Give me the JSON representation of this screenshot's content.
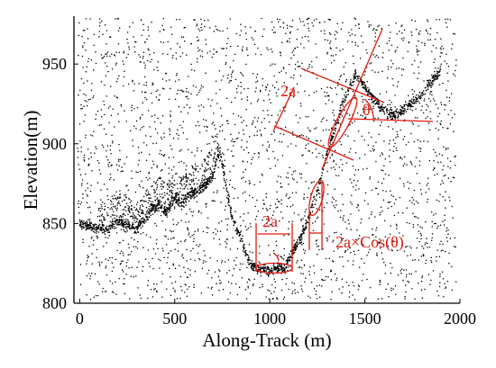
{
  "chart_data": {
    "type": "scatter",
    "xlabel": "Along-Track (m)",
    "ylabel": "Elevation(m)",
    "xlim": [
      -30,
      2000
    ],
    "ylim": [
      800,
      980
    ],
    "xticks": [
      "0",
      "500",
      "1000",
      "1500",
      "2000"
    ],
    "yticks": [
      "800",
      "850",
      "900",
      "950"
    ],
    "xtick_values": [
      0,
      500,
      1000,
      1500,
      2000
    ],
    "ytick_values": [
      800,
      850,
      900,
      950
    ],
    "grid": false,
    "legend": "none",
    "series": [
      {
        "role": "noise",
        "distribution": "uniform random photons over the whole plot area",
        "point_count": 2600
      },
      {
        "role": "surface",
        "x": [
          0,
          60,
          120,
          150,
          200,
          260,
          300,
          340,
          380,
          420,
          450,
          500,
          540,
          580,
          620,
          660,
          700,
          720,
          740,
          760,
          800,
          850,
          900,
          950,
          1000,
          1050,
          1080,
          1100,
          1150,
          1200,
          1250,
          1300,
          1350,
          1400,
          1450,
          1500,
          1550,
          1600,
          1650,
          1700,
          1750,
          1800,
          1850,
          1900
        ],
        "y": [
          850,
          848,
          846,
          845,
          852,
          848,
          846,
          852,
          858,
          862,
          857,
          865,
          862,
          868,
          870,
          874,
          880,
          890,
          896,
          880,
          855,
          840,
          823,
          821,
          821,
          822,
          823,
          828,
          838,
          852,
          870,
          893,
          912,
          930,
          944,
          936,
          928,
          921,
          918,
          921,
          926,
          931,
          939,
          946
        ]
      }
    ],
    "annotations": [
      {
        "label": "2a",
        "color": "#e0190f",
        "note": "footprint width near valley floor (around x 950-1080)"
      },
      {
        "label": "2a×Cos(θ)",
        "color": "#e0190f",
        "note": "projected footprint on slope (around x 1200-1260)"
      },
      {
        "label": "2a",
        "color": "#e0190f",
        "note": "footprint width measured along slope"
      },
      {
        "label": "θ",
        "color": "#e0190f",
        "note": "slope angle at upper right ellipse"
      }
    ]
  },
  "colors": {
    "accent": "#e0190f",
    "points": "#000000"
  }
}
